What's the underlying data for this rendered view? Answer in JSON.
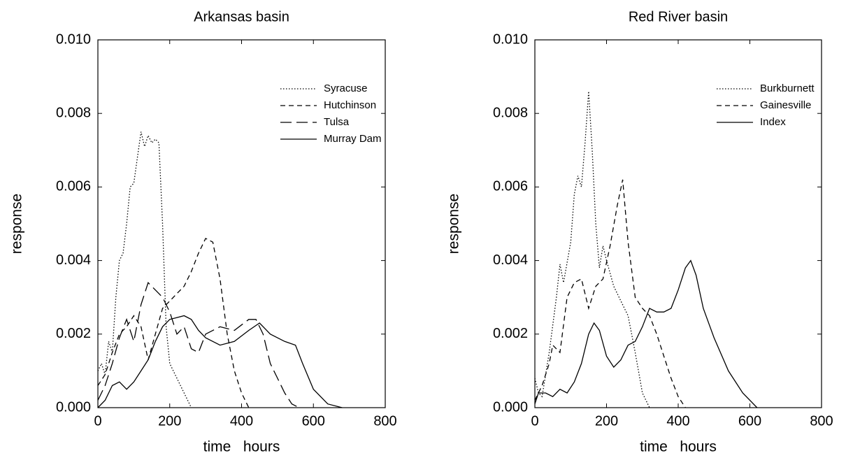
{
  "chart_data": [
    {
      "type": "line",
      "title": "Arkansas basin",
      "x_label": "time   hours",
      "y_label": "response",
      "xlim": [
        0,
        800
      ],
      "xticks": [
        0,
        200,
        400,
        600,
        800
      ],
      "ylim": [
        0,
        0.01
      ],
      "yticks": [
        {
          "value": 0,
          "label": "0.000"
        },
        {
          "value": 0.002,
          "label": "0.002"
        },
        {
          "value": 0.004,
          "label": "0.004"
        },
        {
          "value": 0.006,
          "label": "0.006"
        },
        {
          "value": 0.008,
          "label": "0.008"
        },
        {
          "value": 0.01,
          "label": "0.010"
        }
      ],
      "legend": "upper right",
      "series": [
        {
          "name": "Syracuse",
          "color": "#000",
          "style": "dotted",
          "x": [
            0,
            10,
            20,
            30,
            40,
            50,
            60,
            70,
            80,
            90,
            100,
            110,
            120,
            130,
            140,
            150,
            160,
            170,
            180,
            190,
            200,
            220,
            240,
            260
          ],
          "values": [
            0.001,
            0.0012,
            0.0009,
            0.0018,
            0.0015,
            0.003,
            0.004,
            0.0042,
            0.005,
            0.006,
            0.0061,
            0.0068,
            0.0075,
            0.0071,
            0.0074,
            0.0072,
            0.0073,
            0.0072,
            0.005,
            0.0022,
            0.0012,
            0.0008,
            0.0004,
            0
          ]
        },
        {
          "name": "Hutchinson",
          "color": "#000",
          "style": "dashed",
          "x": [
            0,
            20,
            40,
            60,
            80,
            100,
            120,
            140,
            160,
            180,
            200,
            220,
            240,
            260,
            280,
            300,
            320,
            340,
            360,
            380,
            400,
            420
          ],
          "values": [
            0.0006,
            0.0009,
            0.0015,
            0.002,
            0.0022,
            0.0025,
            0.0022,
            0.0013,
            0.002,
            0.0027,
            0.0029,
            0.0031,
            0.0033,
            0.0037,
            0.0042,
            0.0046,
            0.0045,
            0.0035,
            0.002,
            0.001,
            0.0004,
            0
          ]
        },
        {
          "name": "Tulsa",
          "color": "#000",
          "style": "longdash",
          "x": [
            0,
            20,
            40,
            60,
            80,
            100,
            120,
            140,
            160,
            180,
            200,
            220,
            240,
            260,
            280,
            300,
            340,
            380,
            420,
            440,
            460,
            480,
            500,
            520,
            540,
            560
          ],
          "values": [
            0.0002,
            0.0006,
            0.0012,
            0.0019,
            0.0024,
            0.0018,
            0.0028,
            0.0034,
            0.0032,
            0.003,
            0.0026,
            0.002,
            0.0022,
            0.0016,
            0.0015,
            0.002,
            0.0022,
            0.0021,
            0.0024,
            0.0024,
            0.002,
            0.0012,
            0.0008,
            0.0004,
            0.0001,
            0
          ]
        },
        {
          "name": "Murray Dam",
          "color": "#000",
          "style": "solid",
          "x": [
            0,
            20,
            40,
            60,
            80,
            100,
            120,
            140,
            160,
            180,
            200,
            240,
            260,
            280,
            300,
            340,
            380,
            420,
            450,
            480,
            520,
            550,
            570,
            600,
            640,
            680
          ],
          "values": [
            0,
            0.0002,
            0.0006,
            0.0007,
            0.0005,
            0.0007,
            0.001,
            0.0013,
            0.0018,
            0.0022,
            0.0024,
            0.0025,
            0.0024,
            0.0021,
            0.0019,
            0.0017,
            0.0018,
            0.0021,
            0.0023,
            0.002,
            0.0018,
            0.0017,
            0.0012,
            0.0005,
            0.0001,
            0
          ]
        }
      ]
    },
    {
      "type": "line",
      "title": "Red River basin",
      "x_label": "time   hours",
      "y_label": "response",
      "xlim": [
        0,
        800
      ],
      "xticks": [
        0,
        200,
        400,
        600,
        800
      ],
      "ylim": [
        0,
        0.01
      ],
      "yticks": [
        {
          "value": 0,
          "label": "0.000"
        },
        {
          "value": 0.002,
          "label": "0.002"
        },
        {
          "value": 0.004,
          "label": "0.004"
        },
        {
          "value": 0.006,
          "label": "0.006"
        },
        {
          "value": 0.008,
          "label": "0.008"
        },
        {
          "value": 0.01,
          "label": "0.010"
        }
      ],
      "legend": "upper right",
      "series": [
        {
          "name": "Burkburnett",
          "color": "#000",
          "style": "dotted",
          "x": [
            0,
            10,
            20,
            40,
            60,
            70,
            80,
            100,
            110,
            120,
            130,
            140,
            150,
            160,
            170,
            180,
            190,
            200,
            220,
            240,
            260,
            280,
            300,
            320
          ],
          "values": [
            0.0008,
            0.0004,
            0.0003,
            0.0015,
            0.003,
            0.0039,
            0.0034,
            0.0045,
            0.0058,
            0.0063,
            0.006,
            0.0072,
            0.0086,
            0.007,
            0.005,
            0.0038,
            0.0044,
            0.004,
            0.0033,
            0.0029,
            0.0025,
            0.0015,
            0.0004,
            0
          ]
        },
        {
          "name": "Gainesville",
          "color": "#000",
          "style": "dashed",
          "x": [
            0,
            20,
            40,
            50,
            70,
            90,
            110,
            130,
            150,
            170,
            190,
            210,
            230,
            245,
            260,
            280,
            300,
            320,
            340,
            360,
            380,
            400,
            420
          ],
          "values": [
            0.0002,
            0.0006,
            0.0012,
            0.0017,
            0.0015,
            0.003,
            0.0034,
            0.0035,
            0.0027,
            0.0033,
            0.0035,
            0.0044,
            0.0055,
            0.0062,
            0.0045,
            0.003,
            0.0027,
            0.0025,
            0.002,
            0.0014,
            0.0008,
            0.0003,
            0
          ]
        },
        {
          "name": "Index",
          "color": "#000",
          "style": "solid",
          "x": [
            0,
            10,
            30,
            50,
            70,
            90,
            110,
            130,
            150,
            165,
            180,
            200,
            220,
            240,
            260,
            280,
            300,
            320,
            340,
            360,
            380,
            400,
            420,
            435,
            450,
            470,
            500,
            540,
            580,
            620
          ],
          "values": [
            0.0001,
            0.0004,
            0.0004,
            0.0003,
            0.0005,
            0.0004,
            0.0007,
            0.0012,
            0.002,
            0.0023,
            0.0021,
            0.0014,
            0.0011,
            0.0013,
            0.0017,
            0.0018,
            0.0022,
            0.0027,
            0.0026,
            0.0026,
            0.0027,
            0.0032,
            0.0038,
            0.004,
            0.0036,
            0.0027,
            0.0019,
            0.001,
            0.0004,
            0
          ]
        }
      ]
    }
  ]
}
